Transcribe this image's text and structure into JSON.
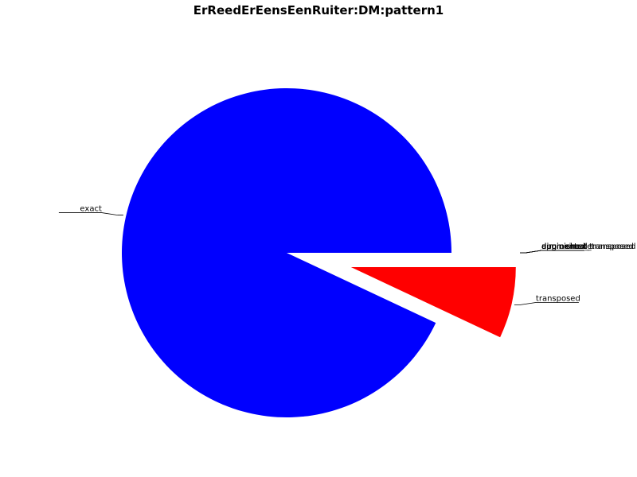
{
  "chart_data": {
    "type": "pie",
    "title": "ErReedErEensEenRuiter:DM:pattern1",
    "slices": [
      {
        "label": "exact",
        "value": 93.0,
        "color": "#0000ff",
        "exploded": false
      },
      {
        "label": "transposed",
        "value": 7.0,
        "color": "#ff0000",
        "exploded": true
      },
      {
        "label": "augmented",
        "value": 0,
        "color": "#008000",
        "exploded": true
      },
      {
        "label": "diminished",
        "value": 0,
        "color": "#00bfbf",
        "exploded": true
      },
      {
        "label": "augmented_transposed",
        "value": 0,
        "color": "#bf00bf",
        "exploded": true
      },
      {
        "label": "diminished_transposed",
        "value": 0,
        "color": "#bfbf00",
        "exploded": true
      },
      {
        "label": "approximate",
        "value": 0,
        "color": "#000000",
        "exploded": true
      }
    ],
    "legend": "none"
  }
}
